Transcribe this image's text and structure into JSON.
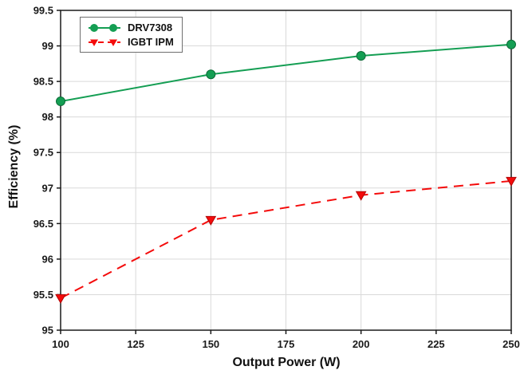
{
  "chart_data": {
    "type": "line",
    "title": "",
    "xlabel": "Output Power (W)",
    "ylabel": "Efficiency (%)",
    "x": [
      100,
      150,
      200,
      250
    ],
    "xlim": [
      100,
      250
    ],
    "ylim": [
      95,
      99.5
    ],
    "xticks": [
      100,
      125,
      150,
      175,
      200,
      225,
      250
    ],
    "yticks": [
      95,
      95.5,
      96,
      96.5,
      97,
      97.5,
      98,
      98.5,
      99,
      99.5
    ],
    "grid": true,
    "legend_position": "top-left",
    "colors": {
      "grid": "#d9d9d9",
      "frame": "#1a1a1a",
      "tick_text": "#1a1a1a"
    },
    "series": [
      {
        "name": "DRV7308",
        "values": [
          98.22,
          98.6,
          98.86,
          99.02
        ],
        "color": "#149e53",
        "marker_edge": "#0c6b37",
        "line_style": "solid",
        "marker": "circle"
      },
      {
        "name": "IGBT IPM",
        "values": [
          95.45,
          96.55,
          96.9,
          97.1
        ],
        "color": "#f40b0b",
        "marker_edge": "#b00606",
        "line_style": "dashed",
        "marker": "triangle-down"
      }
    ]
  }
}
